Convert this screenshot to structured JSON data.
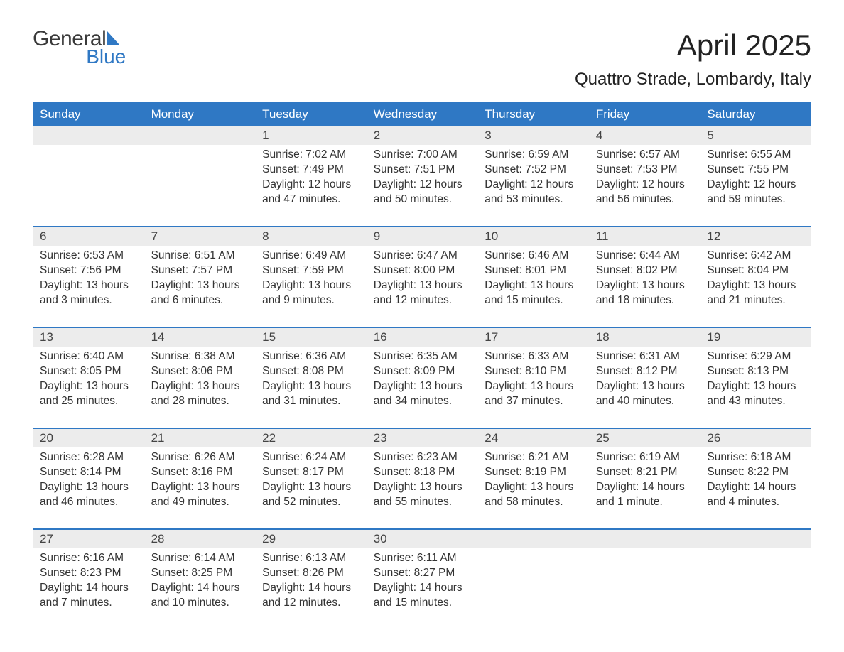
{
  "logo": {
    "general": "General",
    "blue": "Blue",
    "shape_color": "#2f78c4",
    "text_dark": "#3a3a3a"
  },
  "title": "April 2025",
  "location": "Quattro Strade, Lombardy, Italy",
  "colors": {
    "header_bg": "#2f78c4",
    "header_text": "#ffffff",
    "daynum_bg": "#ececec",
    "text": "#333333",
    "week_border": "#2f78c4",
    "background": "#ffffff"
  },
  "font": {
    "family": "Arial, Helvetica, sans-serif",
    "title_size": 42,
    "location_size": 24,
    "header_size": 17,
    "daynum_size": 17,
    "cell_size": 15.5
  },
  "day_headers": [
    "Sunday",
    "Monday",
    "Tuesday",
    "Wednesday",
    "Thursday",
    "Friday",
    "Saturday"
  ],
  "weeks": [
    {
      "nums": [
        "",
        "",
        "1",
        "2",
        "3",
        "4",
        "5"
      ],
      "cells": [
        {
          "sunrise": "",
          "sunset": "",
          "daylight": ""
        },
        {
          "sunrise": "",
          "sunset": "",
          "daylight": ""
        },
        {
          "sunrise": "Sunrise: 7:02 AM",
          "sunset": "Sunset: 7:49 PM",
          "daylight": "Daylight: 12 hours and 47 minutes."
        },
        {
          "sunrise": "Sunrise: 7:00 AM",
          "sunset": "Sunset: 7:51 PM",
          "daylight": "Daylight: 12 hours and 50 minutes."
        },
        {
          "sunrise": "Sunrise: 6:59 AM",
          "sunset": "Sunset: 7:52 PM",
          "daylight": "Daylight: 12 hours and 53 minutes."
        },
        {
          "sunrise": "Sunrise: 6:57 AM",
          "sunset": "Sunset: 7:53 PM",
          "daylight": "Daylight: 12 hours and 56 minutes."
        },
        {
          "sunrise": "Sunrise: 6:55 AM",
          "sunset": "Sunset: 7:55 PM",
          "daylight": "Daylight: 12 hours and 59 minutes."
        }
      ]
    },
    {
      "nums": [
        "6",
        "7",
        "8",
        "9",
        "10",
        "11",
        "12"
      ],
      "cells": [
        {
          "sunrise": "Sunrise: 6:53 AM",
          "sunset": "Sunset: 7:56 PM",
          "daylight": "Daylight: 13 hours and 3 minutes."
        },
        {
          "sunrise": "Sunrise: 6:51 AM",
          "sunset": "Sunset: 7:57 PM",
          "daylight": "Daylight: 13 hours and 6 minutes."
        },
        {
          "sunrise": "Sunrise: 6:49 AM",
          "sunset": "Sunset: 7:59 PM",
          "daylight": "Daylight: 13 hours and 9 minutes."
        },
        {
          "sunrise": "Sunrise: 6:47 AM",
          "sunset": "Sunset: 8:00 PM",
          "daylight": "Daylight: 13 hours and 12 minutes."
        },
        {
          "sunrise": "Sunrise: 6:46 AM",
          "sunset": "Sunset: 8:01 PM",
          "daylight": "Daylight: 13 hours and 15 minutes."
        },
        {
          "sunrise": "Sunrise: 6:44 AM",
          "sunset": "Sunset: 8:02 PM",
          "daylight": "Daylight: 13 hours and 18 minutes."
        },
        {
          "sunrise": "Sunrise: 6:42 AM",
          "sunset": "Sunset: 8:04 PM",
          "daylight": "Daylight: 13 hours and 21 minutes."
        }
      ]
    },
    {
      "nums": [
        "13",
        "14",
        "15",
        "16",
        "17",
        "18",
        "19"
      ],
      "cells": [
        {
          "sunrise": "Sunrise: 6:40 AM",
          "sunset": "Sunset: 8:05 PM",
          "daylight": "Daylight: 13 hours and 25 minutes."
        },
        {
          "sunrise": "Sunrise: 6:38 AM",
          "sunset": "Sunset: 8:06 PM",
          "daylight": "Daylight: 13 hours and 28 minutes."
        },
        {
          "sunrise": "Sunrise: 6:36 AM",
          "sunset": "Sunset: 8:08 PM",
          "daylight": "Daylight: 13 hours and 31 minutes."
        },
        {
          "sunrise": "Sunrise: 6:35 AM",
          "sunset": "Sunset: 8:09 PM",
          "daylight": "Daylight: 13 hours and 34 minutes."
        },
        {
          "sunrise": "Sunrise: 6:33 AM",
          "sunset": "Sunset: 8:10 PM",
          "daylight": "Daylight: 13 hours and 37 minutes."
        },
        {
          "sunrise": "Sunrise: 6:31 AM",
          "sunset": "Sunset: 8:12 PM",
          "daylight": "Daylight: 13 hours and 40 minutes."
        },
        {
          "sunrise": "Sunrise: 6:29 AM",
          "sunset": "Sunset: 8:13 PM",
          "daylight": "Daylight: 13 hours and 43 minutes."
        }
      ]
    },
    {
      "nums": [
        "20",
        "21",
        "22",
        "23",
        "24",
        "25",
        "26"
      ],
      "cells": [
        {
          "sunrise": "Sunrise: 6:28 AM",
          "sunset": "Sunset: 8:14 PM",
          "daylight": "Daylight: 13 hours and 46 minutes."
        },
        {
          "sunrise": "Sunrise: 6:26 AM",
          "sunset": "Sunset: 8:16 PM",
          "daylight": "Daylight: 13 hours and 49 minutes."
        },
        {
          "sunrise": "Sunrise: 6:24 AM",
          "sunset": "Sunset: 8:17 PM",
          "daylight": "Daylight: 13 hours and 52 minutes."
        },
        {
          "sunrise": "Sunrise: 6:23 AM",
          "sunset": "Sunset: 8:18 PM",
          "daylight": "Daylight: 13 hours and 55 minutes."
        },
        {
          "sunrise": "Sunrise: 6:21 AM",
          "sunset": "Sunset: 8:19 PM",
          "daylight": "Daylight: 13 hours and 58 minutes."
        },
        {
          "sunrise": "Sunrise: 6:19 AM",
          "sunset": "Sunset: 8:21 PM",
          "daylight": "Daylight: 14 hours and 1 minute."
        },
        {
          "sunrise": "Sunrise: 6:18 AM",
          "sunset": "Sunset: 8:22 PM",
          "daylight": "Daylight: 14 hours and 4 minutes."
        }
      ]
    },
    {
      "nums": [
        "27",
        "28",
        "29",
        "30",
        "",
        "",
        ""
      ],
      "cells": [
        {
          "sunrise": "Sunrise: 6:16 AM",
          "sunset": "Sunset: 8:23 PM",
          "daylight": "Daylight: 14 hours and 7 minutes."
        },
        {
          "sunrise": "Sunrise: 6:14 AM",
          "sunset": "Sunset: 8:25 PM",
          "daylight": "Daylight: 14 hours and 10 minutes."
        },
        {
          "sunrise": "Sunrise: 6:13 AM",
          "sunset": "Sunset: 8:26 PM",
          "daylight": "Daylight: 14 hours and 12 minutes."
        },
        {
          "sunrise": "Sunrise: 6:11 AM",
          "sunset": "Sunset: 8:27 PM",
          "daylight": "Daylight: 14 hours and 15 minutes."
        },
        {
          "sunrise": "",
          "sunset": "",
          "daylight": ""
        },
        {
          "sunrise": "",
          "sunset": "",
          "daylight": ""
        },
        {
          "sunrise": "",
          "sunset": "",
          "daylight": ""
        }
      ]
    }
  ]
}
